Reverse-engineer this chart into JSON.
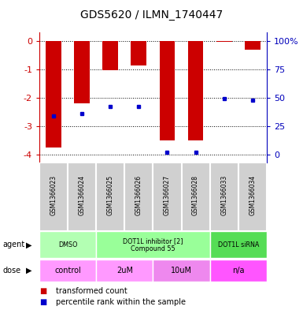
{
  "title": "GDS5620 / ILMN_1740447",
  "samples": [
    "GSM1366023",
    "GSM1366024",
    "GSM1366025",
    "GSM1366026",
    "GSM1366027",
    "GSM1366028",
    "GSM1366033",
    "GSM1366034"
  ],
  "red_bar_values": [
    -3.75,
    -2.2,
    -1.02,
    -0.85,
    -3.5,
    -3.5,
    -0.02,
    -0.3
  ],
  "blue_square_y": [
    -2.65,
    -2.55,
    -2.3,
    -2.3,
    -3.93,
    -3.93,
    -2.02,
    -2.1
  ],
  "ylim": [
    -4.3,
    0.3
  ],
  "yticks_left": [
    0,
    -1,
    -2,
    -3,
    -4
  ],
  "yticks_right_pos": [
    0,
    -1,
    -2,
    -3,
    -4
  ],
  "right_yaxis_labels": [
    "100%",
    "75",
    "50",
    "25",
    "0"
  ],
  "bar_color": "#cc0000",
  "blue_color": "#0000cc",
  "agent_groups": [
    {
      "label": "DMSO",
      "cols": [
        0,
        1
      ],
      "color": "#b3ffb3"
    },
    {
      "label": "DOT1L inhibitor [2]\nCompound 55",
      "cols": [
        2,
        3,
        4,
        5
      ],
      "color": "#99ff99"
    },
    {
      "label": "DOT1L siRNA",
      "cols": [
        6,
        7
      ],
      "color": "#55dd55"
    }
  ],
  "dose_groups": [
    {
      "label": "control",
      "cols": [
        0,
        1
      ],
      "color": "#ff99ff"
    },
    {
      "label": "2uM",
      "cols": [
        2,
        3
      ],
      "color": "#ff99ff"
    },
    {
      "label": "10uM",
      "cols": [
        4,
        5
      ],
      "color": "#ee88ee"
    },
    {
      "label": "n/a",
      "cols": [
        6,
        7
      ],
      "color": "#ff55ff"
    }
  ],
  "legend_items": [
    {
      "label": "transformed count",
      "color": "#cc0000"
    },
    {
      "label": "percentile rank within the sample",
      "color": "#0000cc"
    }
  ],
  "background_color": "#ffffff",
  "axis_color_left": "#cc0000",
  "axis_color_right": "#0000bb",
  "sample_bg_color": "#d0d0d0",
  "sample_border_color": "#ffffff",
  "n_samples": 8
}
